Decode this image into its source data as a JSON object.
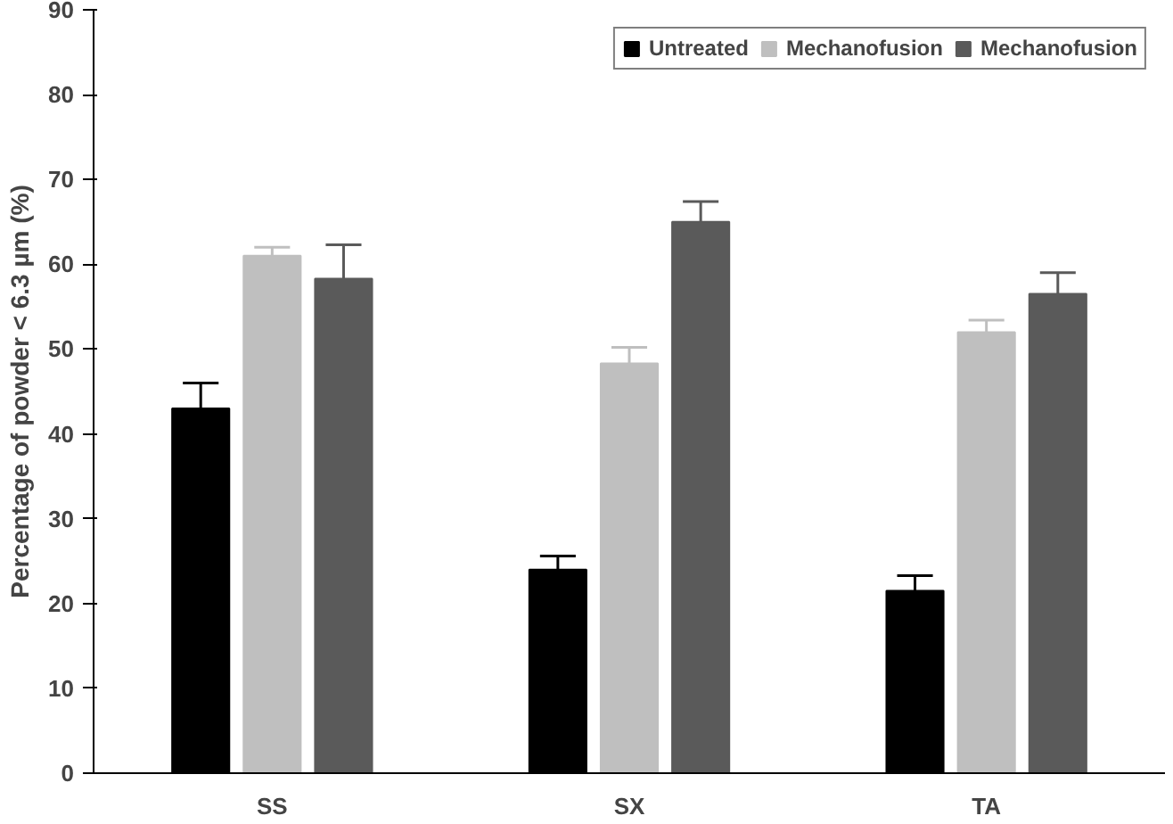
{
  "chart_data": {
    "type": "bar",
    "ylabel": "Percentage of powder < 6.3 µm (%)",
    "categories": [
      "SS",
      "SX",
      "TA"
    ],
    "series": [
      {
        "name": "Untreated",
        "color": "#000000",
        "values": [
          43,
          24,
          21.5
        ],
        "errors": [
          [
            43,
            46
          ],
          [
            24,
            25.6
          ],
          [
            21.5,
            23.3
          ]
        ]
      },
      {
        "name": "Mechanofusion",
        "color": "#bfbfbf",
        "values": [
          61,
          48.3,
          52
        ],
        "errors": [
          [
            61,
            62
          ],
          [
            48.3,
            50.2
          ],
          [
            52,
            53.4
          ]
        ]
      },
      {
        "name": "Mechanofusion",
        "color": "#5a5a5a",
        "values": [
          58.3,
          65,
          56.5
        ],
        "errors": [
          [
            58.3,
            62.3
          ],
          [
            65,
            67.4
          ],
          [
            56.5,
            59
          ]
        ]
      }
    ],
    "ylim": [
      0,
      90
    ],
    "yticks": [
      0,
      10,
      20,
      30,
      40,
      50,
      60,
      70,
      80,
      90
    ],
    "grid": false,
    "legend": "top right"
  }
}
